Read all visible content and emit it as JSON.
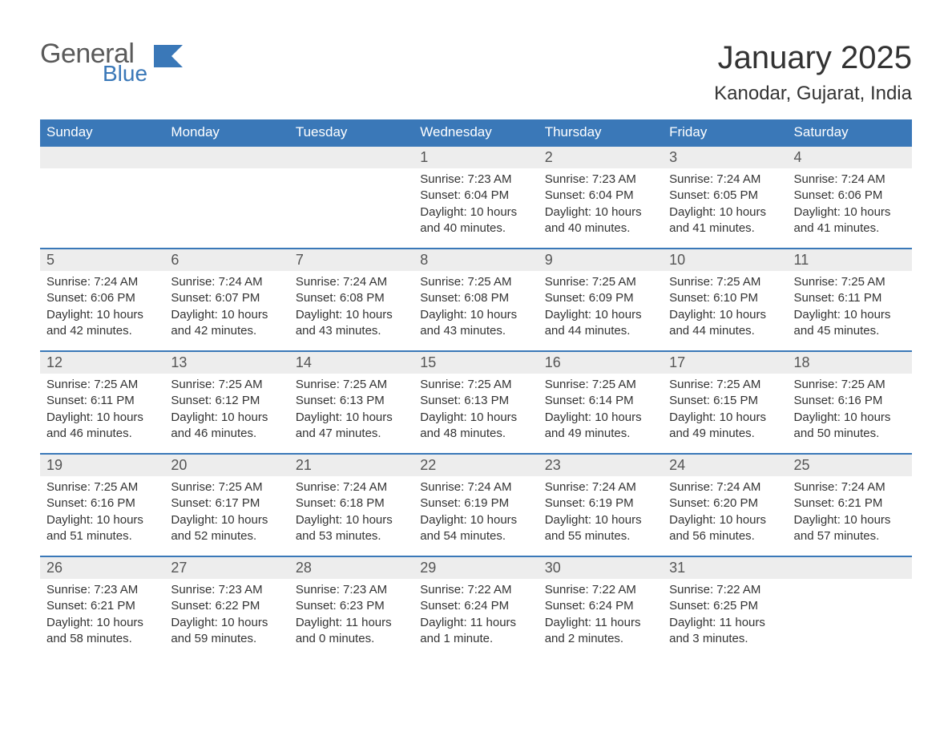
{
  "logo": {
    "general": "General",
    "blue": "Blue",
    "flag_color": "#3a78b8"
  },
  "header": {
    "title": "January 2025",
    "location": "Kanodar, Gujarat, India"
  },
  "style": {
    "header_bg": "#3a78b8",
    "header_fg": "#ffffff",
    "daynum_bg": "#ededed",
    "row_border": "#3a78b8",
    "body_bg": "#ffffff",
    "text_color": "#333333",
    "daynum_color": "#555555",
    "title_fontsize": 40,
    "location_fontsize": 24,
    "th_fontsize": 17,
    "daynum_fontsize": 18,
    "body_fontsize": 15
  },
  "calendar": {
    "type": "table",
    "columns": [
      "Sunday",
      "Monday",
      "Tuesday",
      "Wednesday",
      "Thursday",
      "Friday",
      "Saturday"
    ],
    "weeks": [
      [
        null,
        null,
        null,
        {
          "n": "1",
          "sunrise": "Sunrise: 7:23 AM",
          "sunset": "Sunset: 6:04 PM",
          "daylight": "Daylight: 10 hours and 40 minutes."
        },
        {
          "n": "2",
          "sunrise": "Sunrise: 7:23 AM",
          "sunset": "Sunset: 6:04 PM",
          "daylight": "Daylight: 10 hours and 40 minutes."
        },
        {
          "n": "3",
          "sunrise": "Sunrise: 7:24 AM",
          "sunset": "Sunset: 6:05 PM",
          "daylight": "Daylight: 10 hours and 41 minutes."
        },
        {
          "n": "4",
          "sunrise": "Sunrise: 7:24 AM",
          "sunset": "Sunset: 6:06 PM",
          "daylight": "Daylight: 10 hours and 41 minutes."
        }
      ],
      [
        {
          "n": "5",
          "sunrise": "Sunrise: 7:24 AM",
          "sunset": "Sunset: 6:06 PM",
          "daylight": "Daylight: 10 hours and 42 minutes."
        },
        {
          "n": "6",
          "sunrise": "Sunrise: 7:24 AM",
          "sunset": "Sunset: 6:07 PM",
          "daylight": "Daylight: 10 hours and 42 minutes."
        },
        {
          "n": "7",
          "sunrise": "Sunrise: 7:24 AM",
          "sunset": "Sunset: 6:08 PM",
          "daylight": "Daylight: 10 hours and 43 minutes."
        },
        {
          "n": "8",
          "sunrise": "Sunrise: 7:25 AM",
          "sunset": "Sunset: 6:08 PM",
          "daylight": "Daylight: 10 hours and 43 minutes."
        },
        {
          "n": "9",
          "sunrise": "Sunrise: 7:25 AM",
          "sunset": "Sunset: 6:09 PM",
          "daylight": "Daylight: 10 hours and 44 minutes."
        },
        {
          "n": "10",
          "sunrise": "Sunrise: 7:25 AM",
          "sunset": "Sunset: 6:10 PM",
          "daylight": "Daylight: 10 hours and 44 minutes."
        },
        {
          "n": "11",
          "sunrise": "Sunrise: 7:25 AM",
          "sunset": "Sunset: 6:11 PM",
          "daylight": "Daylight: 10 hours and 45 minutes."
        }
      ],
      [
        {
          "n": "12",
          "sunrise": "Sunrise: 7:25 AM",
          "sunset": "Sunset: 6:11 PM",
          "daylight": "Daylight: 10 hours and 46 minutes."
        },
        {
          "n": "13",
          "sunrise": "Sunrise: 7:25 AM",
          "sunset": "Sunset: 6:12 PM",
          "daylight": "Daylight: 10 hours and 46 minutes."
        },
        {
          "n": "14",
          "sunrise": "Sunrise: 7:25 AM",
          "sunset": "Sunset: 6:13 PM",
          "daylight": "Daylight: 10 hours and 47 minutes."
        },
        {
          "n": "15",
          "sunrise": "Sunrise: 7:25 AM",
          "sunset": "Sunset: 6:13 PM",
          "daylight": "Daylight: 10 hours and 48 minutes."
        },
        {
          "n": "16",
          "sunrise": "Sunrise: 7:25 AM",
          "sunset": "Sunset: 6:14 PM",
          "daylight": "Daylight: 10 hours and 49 minutes."
        },
        {
          "n": "17",
          "sunrise": "Sunrise: 7:25 AM",
          "sunset": "Sunset: 6:15 PM",
          "daylight": "Daylight: 10 hours and 49 minutes."
        },
        {
          "n": "18",
          "sunrise": "Sunrise: 7:25 AM",
          "sunset": "Sunset: 6:16 PM",
          "daylight": "Daylight: 10 hours and 50 minutes."
        }
      ],
      [
        {
          "n": "19",
          "sunrise": "Sunrise: 7:25 AM",
          "sunset": "Sunset: 6:16 PM",
          "daylight": "Daylight: 10 hours and 51 minutes."
        },
        {
          "n": "20",
          "sunrise": "Sunrise: 7:25 AM",
          "sunset": "Sunset: 6:17 PM",
          "daylight": "Daylight: 10 hours and 52 minutes."
        },
        {
          "n": "21",
          "sunrise": "Sunrise: 7:24 AM",
          "sunset": "Sunset: 6:18 PM",
          "daylight": "Daylight: 10 hours and 53 minutes."
        },
        {
          "n": "22",
          "sunrise": "Sunrise: 7:24 AM",
          "sunset": "Sunset: 6:19 PM",
          "daylight": "Daylight: 10 hours and 54 minutes."
        },
        {
          "n": "23",
          "sunrise": "Sunrise: 7:24 AM",
          "sunset": "Sunset: 6:19 PM",
          "daylight": "Daylight: 10 hours and 55 minutes."
        },
        {
          "n": "24",
          "sunrise": "Sunrise: 7:24 AM",
          "sunset": "Sunset: 6:20 PM",
          "daylight": "Daylight: 10 hours and 56 minutes."
        },
        {
          "n": "25",
          "sunrise": "Sunrise: 7:24 AM",
          "sunset": "Sunset: 6:21 PM",
          "daylight": "Daylight: 10 hours and 57 minutes."
        }
      ],
      [
        {
          "n": "26",
          "sunrise": "Sunrise: 7:23 AM",
          "sunset": "Sunset: 6:21 PM",
          "daylight": "Daylight: 10 hours and 58 minutes."
        },
        {
          "n": "27",
          "sunrise": "Sunrise: 7:23 AM",
          "sunset": "Sunset: 6:22 PM",
          "daylight": "Daylight: 10 hours and 59 minutes."
        },
        {
          "n": "28",
          "sunrise": "Sunrise: 7:23 AM",
          "sunset": "Sunset: 6:23 PM",
          "daylight": "Daylight: 11 hours and 0 minutes."
        },
        {
          "n": "29",
          "sunrise": "Sunrise: 7:22 AM",
          "sunset": "Sunset: 6:24 PM",
          "daylight": "Daylight: 11 hours and 1 minute."
        },
        {
          "n": "30",
          "sunrise": "Sunrise: 7:22 AM",
          "sunset": "Sunset: 6:24 PM",
          "daylight": "Daylight: 11 hours and 2 minutes."
        },
        {
          "n": "31",
          "sunrise": "Sunrise: 7:22 AM",
          "sunset": "Sunset: 6:25 PM",
          "daylight": "Daylight: 11 hours and 3 minutes."
        },
        null
      ]
    ]
  }
}
